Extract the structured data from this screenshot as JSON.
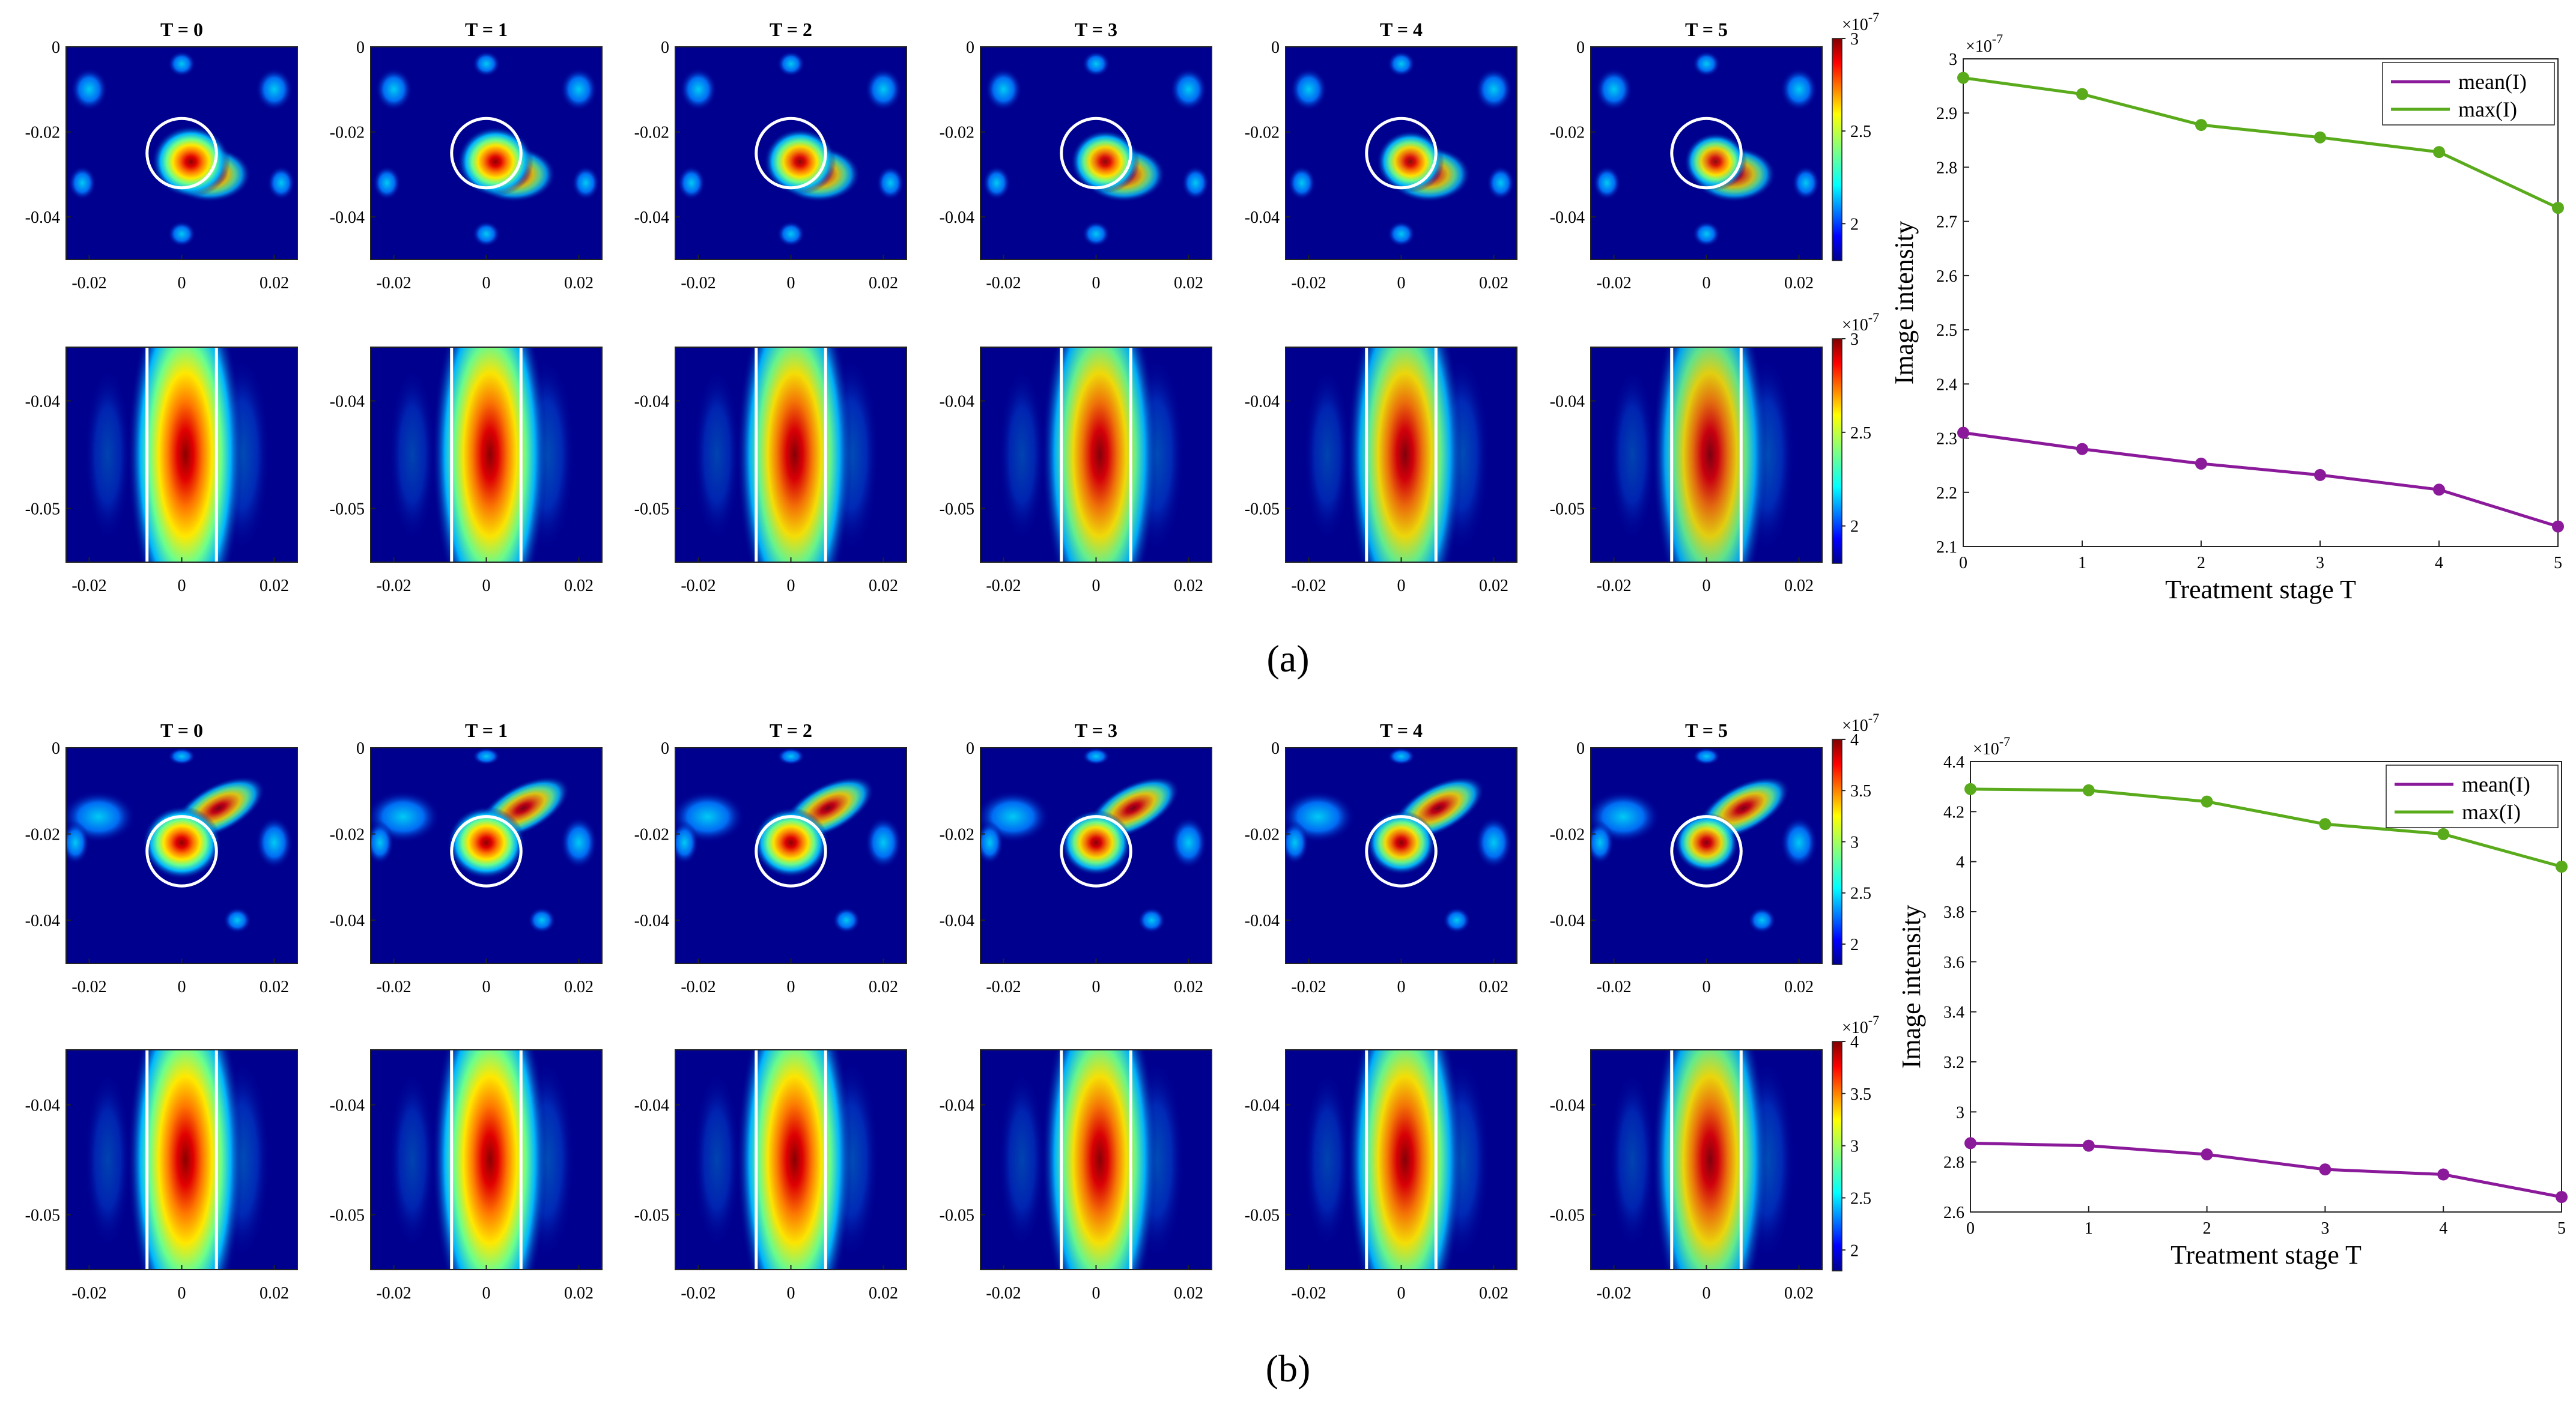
{
  "chart_data": [
    {
      "panel": "a",
      "caption": "(a)",
      "type": "heatmap",
      "stage_titles": [
        "T = 0",
        "T = 1",
        "T = 2",
        "T = 3",
        "T = 4",
        "T = 5"
      ],
      "top_row": {
        "xlim": [
          -0.025,
          0.025
        ],
        "ylim": [
          -0.05,
          0
        ],
        "xticks": [
          -0.02,
          0,
          0.02
        ],
        "xtick_labels": [
          "-0.02",
          "0",
          "0.02"
        ],
        "yticks": [
          0,
          -0.02,
          -0.04
        ],
        "ytick_labels": [
          "0",
          "-0.02",
          "-0.04"
        ],
        "circle_center": [
          0.0,
          -0.025
        ],
        "circle_radius": 0.0075,
        "hotspot_center": [
          0.002,
          -0.027
        ],
        "peak_intensity": [
          1.0,
          0.97,
          0.92,
          0.88,
          0.86,
          0.8
        ]
      },
      "bottom_row": {
        "xlim": [
          -0.025,
          0.025
        ],
        "ylim": [
          -0.055,
          -0.035
        ],
        "xticks": [
          -0.02,
          0,
          0.02
        ],
        "xtick_labels": [
          "-0.02",
          "0",
          "0.02"
        ],
        "yticks": [
          -0.04,
          -0.05
        ],
        "ytick_labels": [
          "-0.04",
          "-0.05"
        ],
        "rect_x": [
          -0.0075,
          0.0075
        ],
        "peak_intensity": [
          1.0,
          0.96,
          0.9,
          0.86,
          0.83,
          0.75
        ]
      },
      "colorbar": {
        "range": [
          1.8,
          3
        ],
        "ticks": [
          2,
          2.5,
          3
        ],
        "tick_labels": [
          "2",
          "2.5",
          "3"
        ],
        "exponent": "×10",
        "exponent_power": "-7"
      },
      "line_plot": {
        "type": "line",
        "x": [
          0,
          1,
          2,
          3,
          4,
          5
        ],
        "xlabel": "Treatment stage T",
        "ylabel": "Image intensity",
        "ylim": [
          2.1,
          3.0
        ],
        "yticks": [
          2.1,
          2.2,
          2.3,
          2.4,
          2.5,
          2.6,
          2.7,
          2.8,
          2.9,
          3
        ],
        "ytick_labels": [
          "2.1",
          "2.2",
          "2.3",
          "2.4",
          "2.5",
          "2.6",
          "2.7",
          "2.8",
          "2.9",
          "3"
        ],
        "exponent": "×10",
        "exponent_power": "-7",
        "series": [
          {
            "name": "mean(I)",
            "color": "#8b1a9b",
            "values": [
              2.31,
              2.28,
              2.253,
              2.232,
              2.205,
              2.137
            ]
          },
          {
            "name": "max(I)",
            "color": "#5aab1c",
            "values": [
              2.965,
              2.935,
              2.878,
              2.855,
              2.828,
              2.725
            ]
          }
        ]
      }
    },
    {
      "panel": "b",
      "caption": "(b)",
      "type": "heatmap",
      "stage_titles": [
        "T = 0",
        "T = 1",
        "T = 2",
        "T = 3",
        "T = 4",
        "T = 5"
      ],
      "top_row": {
        "xlim": [
          -0.025,
          0.025
        ],
        "ylim": [
          -0.05,
          0
        ],
        "xticks": [
          -0.02,
          0,
          0.02
        ],
        "xtick_labels": [
          "-0.02",
          "0",
          "0.02"
        ],
        "yticks": [
          0,
          -0.02,
          -0.04
        ],
        "ytick_labels": [
          "0",
          "-0.02",
          "-0.04"
        ],
        "circle_center": [
          0.0,
          -0.024
        ],
        "circle_radius": 0.0075,
        "hotspot_center": [
          0.0,
          -0.022
        ],
        "peak_intensity": [
          1.0,
          0.99,
          0.96,
          0.9,
          0.88,
          0.82
        ]
      },
      "bottom_row": {
        "xlim": [
          -0.025,
          0.025
        ],
        "ylim": [
          -0.055,
          -0.035
        ],
        "xticks": [
          -0.02,
          0,
          0.02
        ],
        "xtick_labels": [
          "-0.02",
          "0",
          "0.02"
        ],
        "yticks": [
          -0.04,
          -0.05
        ],
        "ytick_labels": [
          "-0.04",
          "-0.05"
        ],
        "rect_x": [
          -0.0075,
          0.0075
        ],
        "peak_intensity": [
          1.0,
          1.0,
          0.97,
          0.92,
          0.9,
          0.82
        ]
      },
      "colorbar": {
        "range": [
          1.8,
          4
        ],
        "ticks": [
          2,
          2.5,
          3,
          3.5,
          4
        ],
        "tick_labels": [
          "2",
          "2.5",
          "3",
          "3.5",
          "4"
        ],
        "exponent": "×10",
        "exponent_power": "-7"
      },
      "line_plot": {
        "type": "line",
        "x": [
          0,
          1,
          2,
          3,
          4,
          5
        ],
        "xlabel": "Treatment stage T",
        "ylabel": "Image intensity",
        "ylim": [
          2.6,
          4.4
        ],
        "yticks": [
          2.6,
          2.8,
          3,
          3.2,
          3.4,
          3.6,
          3.8,
          4,
          4.2,
          4.4
        ],
        "ytick_labels": [
          "2.6",
          "2.8",
          "3",
          "3.2",
          "3.4",
          "3.6",
          "3.8",
          "4",
          "4.2",
          "4.4"
        ],
        "exponent": "×10",
        "exponent_power": "-7",
        "series": [
          {
            "name": "mean(I)",
            "color": "#8b1a9b",
            "values": [
              2.875,
              2.865,
              2.83,
              2.77,
              2.75,
              2.66
            ]
          },
          {
            "name": "max(I)",
            "color": "#5aab1c",
            "values": [
              4.29,
              4.285,
              4.24,
              4.15,
              4.11,
              3.98
            ]
          }
        ]
      }
    }
  ]
}
